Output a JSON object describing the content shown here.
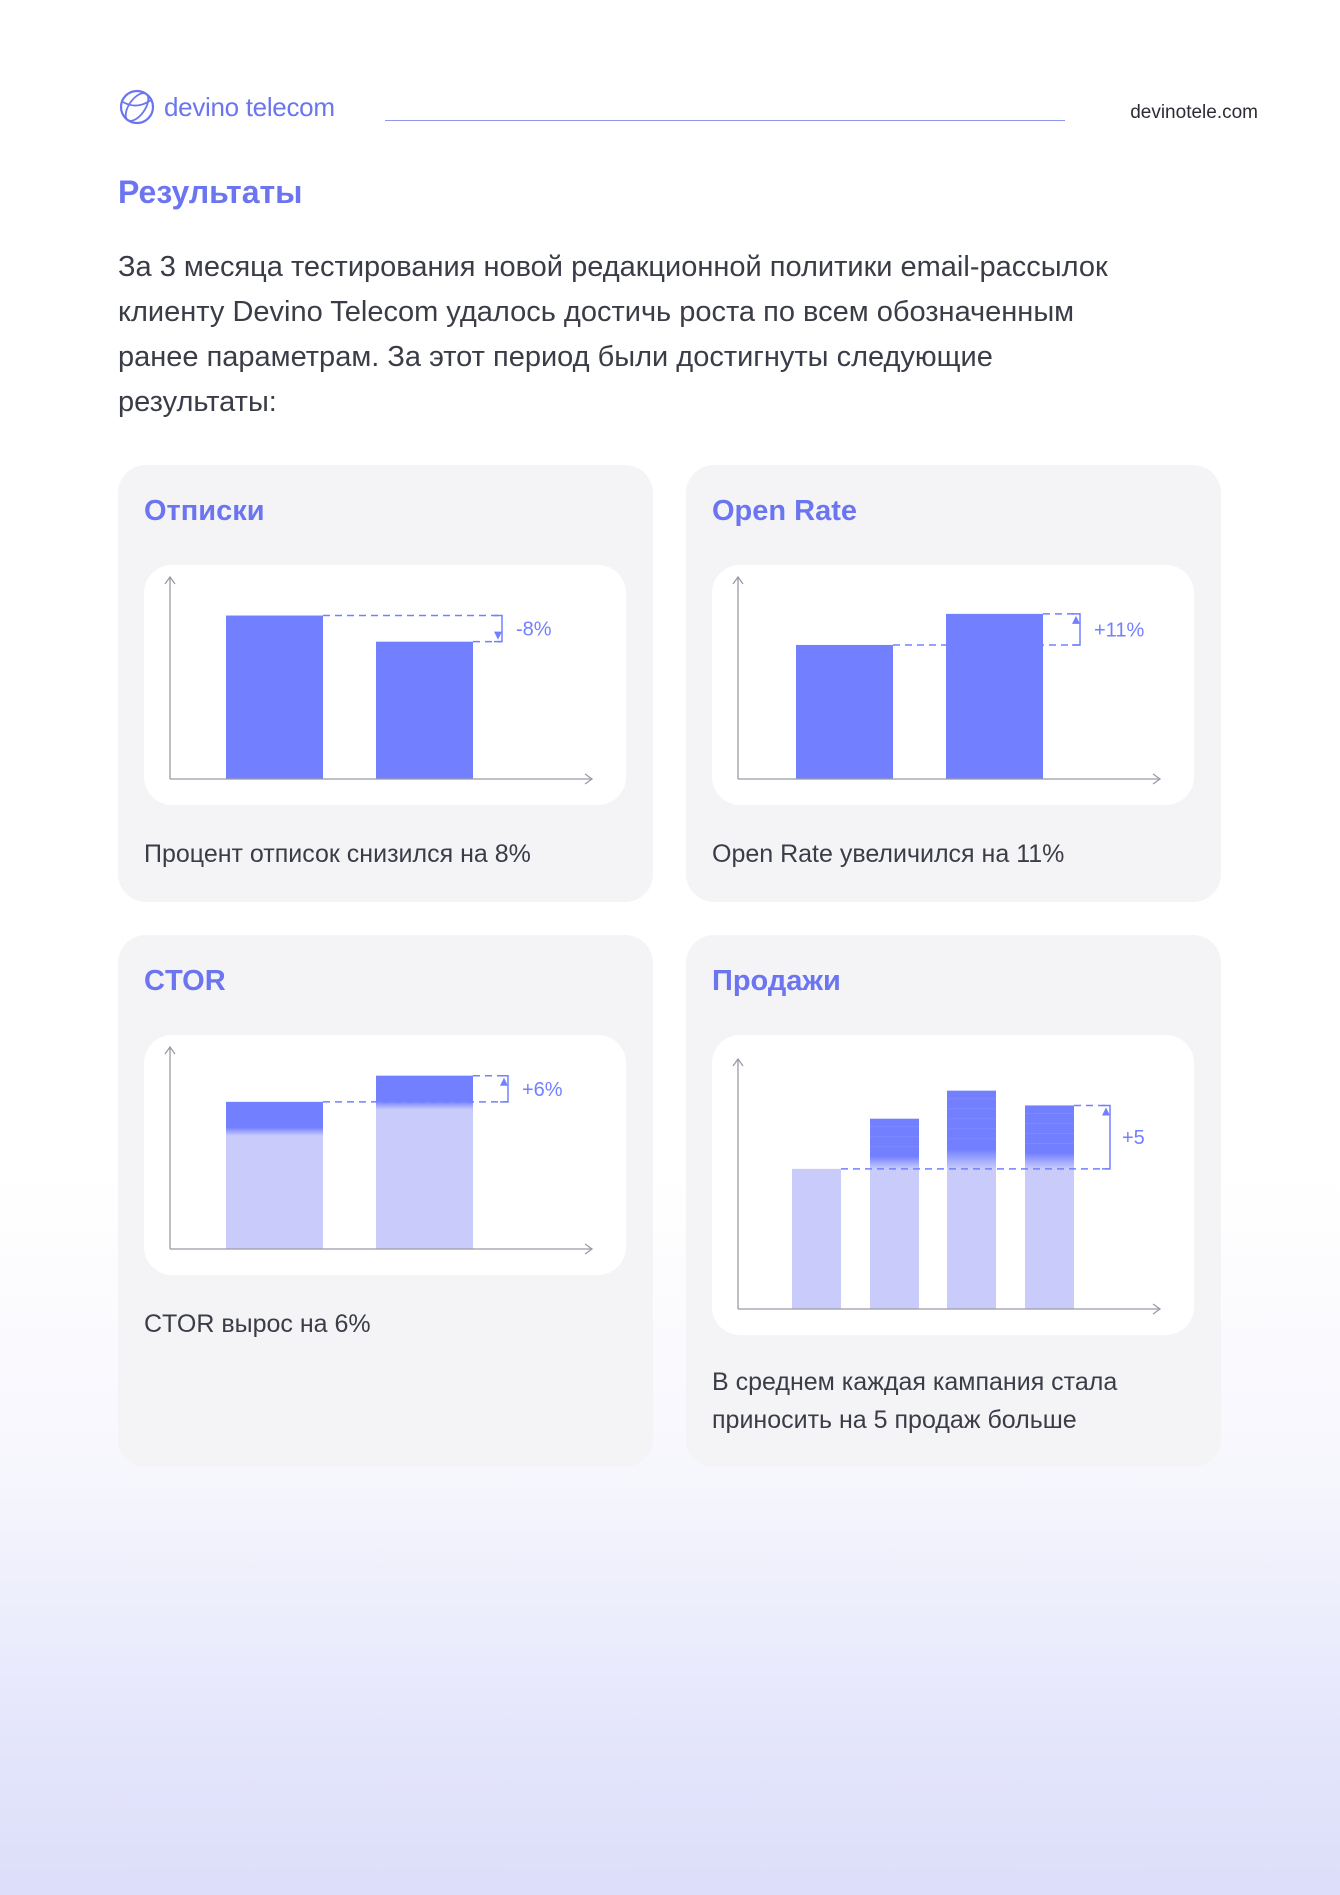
{
  "header": {
    "logo_text": "devino telecom",
    "site": "devinotele.com"
  },
  "section": {
    "title": "Результаты",
    "intro": "За 3 месяца тестирования новой редакционной политики email-рассылок клиенту Devino Telecom удалось достичь роста по всем обозначенным ранее параметрам. За этот период были достигнуты следующие результаты:"
  },
  "colors": {
    "accent": "#6c75f0",
    "bar": "#7280ff",
    "bar_light": "#c9ccfb",
    "card_bg": "#f4f4f6"
  },
  "cards": [
    {
      "title": "Отписки",
      "caption": "Процент отписок снизился на 8%"
    },
    {
      "title": "Open Rate",
      "caption": "Open Rate увеличился на 11%"
    },
    {
      "title": "CTOR",
      "caption": "CTOR вырос на 6%"
    },
    {
      "title": "Продажи",
      "caption": "В среднем каждая кампания стала приносить на 5 продаж больше"
    }
  ],
  "chart_data": [
    {
      "type": "bar",
      "id": "unsub",
      "values": [
        100,
        84
      ],
      "ylim": [
        0,
        115
      ],
      "style": "solid",
      "change_label": "-8%",
      "change_direction": "down"
    },
    {
      "type": "bar",
      "id": "open",
      "values": [
        82,
        101
      ],
      "ylim": [
        0,
        115
      ],
      "style": "solid",
      "change_label": "+11%",
      "change_direction": "up"
    },
    {
      "type": "bar",
      "id": "ctor",
      "values": [
        90,
        106
      ],
      "ylim": [
        0,
        115
      ],
      "style": "gradient",
      "change_label": "+6%",
      "change_direction": "up"
    },
    {
      "type": "bar",
      "id": "sales",
      "values": [
        95,
        129,
        148,
        138
      ],
      "ylim": [
        0,
        160
      ],
      "style": "gradient-baseline",
      "baseline_index": 0,
      "change_label": "+5",
      "change_direction": "up"
    }
  ]
}
